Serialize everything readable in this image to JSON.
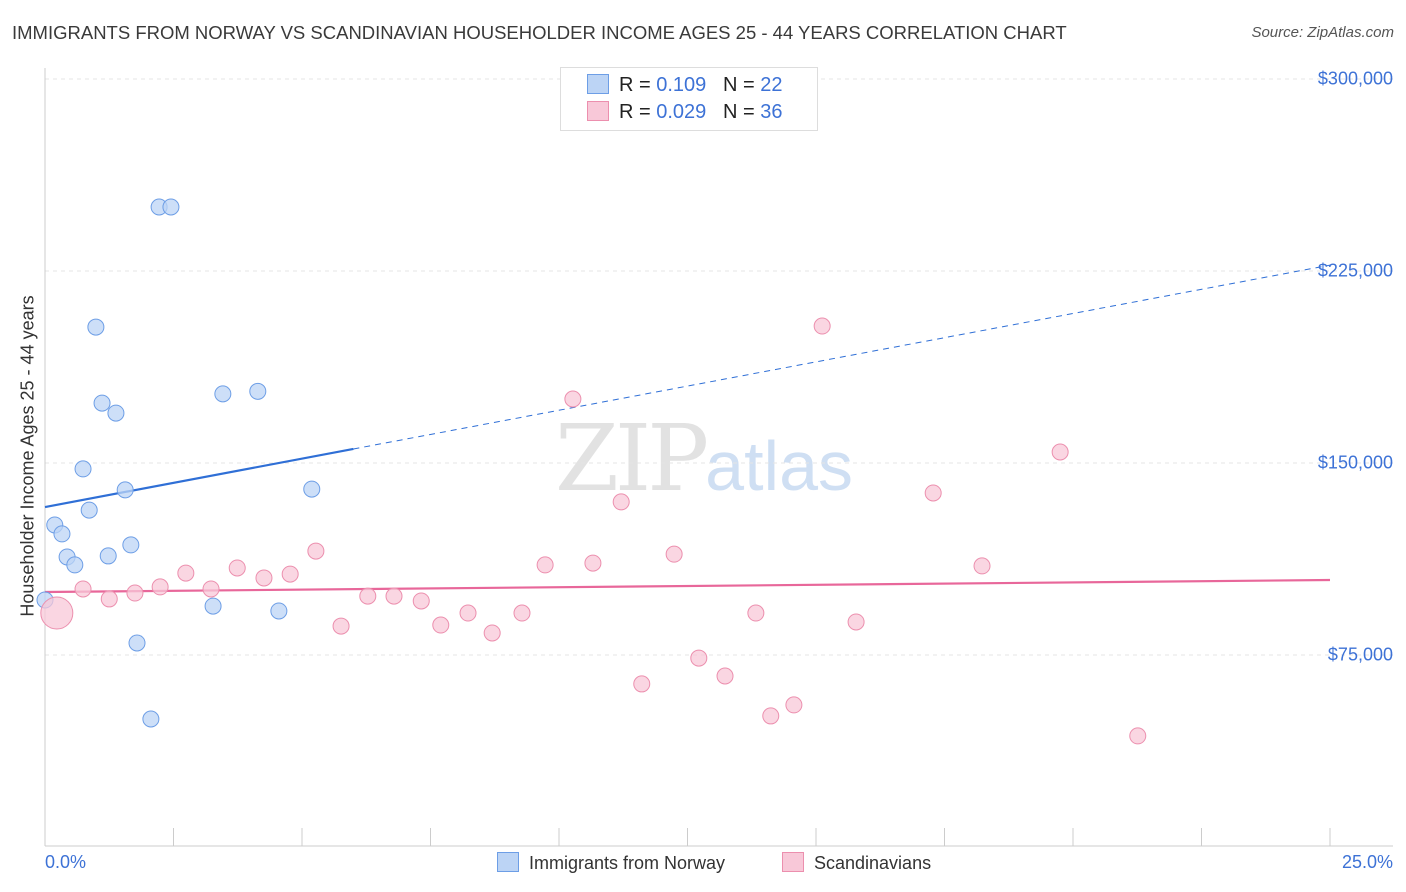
{
  "header": {
    "title": "IMMIGRANTS FROM NORWAY VS SCANDINAVIAN HOUSEHOLDER INCOME AGES 25 - 44 YEARS CORRELATION CHART",
    "source": "Source: ZipAtlas.com"
  },
  "watermark": {
    "zip": "ZIP",
    "atlas": "atlas"
  },
  "legend": {
    "rows": [
      {
        "r_label": "R = ",
        "r": "0.109",
        "n_label": "N = ",
        "n": "22"
      },
      {
        "r_label": "R = ",
        "r": "0.029",
        "n_label": "N = ",
        "n": "36"
      }
    ]
  },
  "chart_data": {
    "type": "scatter",
    "title": "IMMIGRANTS FROM NORWAY VS SCANDINAVIAN HOUSEHOLDER INCOME AGES 25 - 44 YEARS CORRELATION CHART",
    "xlabel": "",
    "ylabel": "Householder Income Ages 25 - 44 years",
    "xlim": [
      0,
      25
    ],
    "ylim": [
      0,
      303000
    ],
    "x_tick_labels": [
      "0.0%",
      "25.0%"
    ],
    "y_ticks": [
      75000,
      150000,
      225000,
      300000
    ],
    "y_tick_labels": [
      "$75,000",
      "$150,000",
      "$225,000",
      "$300,000"
    ],
    "legend_position": "top-center",
    "series": [
      {
        "name": "Immigrants from Norway",
        "color": "#6d9ee6",
        "fill": "#bcd4f5",
        "r": 0.109,
        "n": 22,
        "trend": {
          "x": [
            0,
            25
          ],
          "y": [
            132800,
            227300
          ],
          "solid_until": 6.0
        },
        "points": [
          [
            0.0,
            96500
          ],
          [
            0.19,
            125800
          ],
          [
            0.33,
            122300
          ],
          [
            0.43,
            113300
          ],
          [
            0.58,
            110200
          ],
          [
            0.74,
            147700
          ],
          [
            0.86,
            131600
          ],
          [
            0.99,
            203100
          ],
          [
            1.11,
            173400
          ],
          [
            1.23,
            113700
          ],
          [
            1.38,
            169500
          ],
          [
            1.56,
            139500
          ],
          [
            1.67,
            118000
          ],
          [
            1.79,
            79700
          ],
          [
            2.06,
            50000
          ],
          [
            2.22,
            250000
          ],
          [
            2.45,
            250000
          ],
          [
            3.27,
            94100
          ],
          [
            3.46,
            177000
          ],
          [
            4.14,
            178000
          ],
          [
            4.55,
            92200
          ],
          [
            5.19,
            139800
          ]
        ]
      },
      {
        "name": "Scandinavians",
        "color": "#ec8fae",
        "fill": "#f8c8d8",
        "r": 0.029,
        "n": 36,
        "trend": {
          "x": [
            0,
            25
          ],
          "y": [
            99600,
            104300
          ],
          "solid_until": 25
        },
        "points": [
          [
            0.23,
            91400
          ],
          [
            0.74,
            100800
          ],
          [
            1.25,
            96900
          ],
          [
            1.75,
            99200
          ],
          [
            2.24,
            101600
          ],
          [
            2.74,
            107000
          ],
          [
            3.23,
            100800
          ],
          [
            3.74,
            109000
          ],
          [
            4.26,
            105100
          ],
          [
            4.77,
            106600
          ],
          [
            5.27,
            115600
          ],
          [
            5.76,
            86300
          ],
          [
            6.28,
            98000
          ],
          [
            6.79,
            98000
          ],
          [
            7.32,
            96100
          ],
          [
            7.7,
            86700
          ],
          [
            8.23,
            91400
          ],
          [
            8.7,
            83600
          ],
          [
            9.28,
            91400
          ],
          [
            9.73,
            110200
          ],
          [
            10.27,
            175000
          ],
          [
            10.66,
            110900
          ],
          [
            11.21,
            134800
          ],
          [
            11.61,
            63700
          ],
          [
            12.24,
            114400
          ],
          [
            12.72,
            73800
          ],
          [
            13.23,
            66800
          ],
          [
            13.83,
            91400
          ],
          [
            14.12,
            51200
          ],
          [
            14.57,
            55500
          ],
          [
            15.12,
            203500
          ],
          [
            15.78,
            87900
          ],
          [
            17.28,
            138300
          ],
          [
            18.23,
            109800
          ],
          [
            19.75,
            154300
          ],
          [
            21.26,
            43400
          ]
        ]
      }
    ]
  }
}
